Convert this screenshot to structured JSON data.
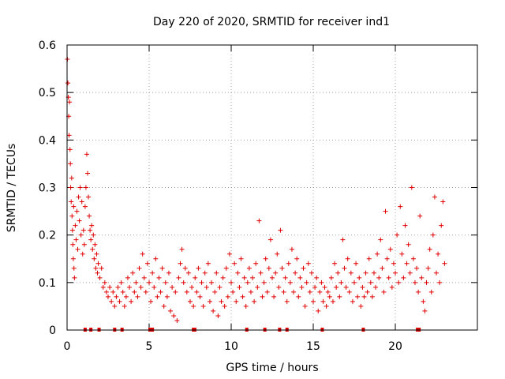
{
  "chart_data": {
    "type": "scatter",
    "title": "Day 220 of 2020, SRMTID for receiver ind1",
    "xlabel": "GPS time / hours",
    "ylabel": "SRMTID / TECUs",
    "xlim": [
      0,
      25
    ],
    "ylim": [
      0,
      0.6
    ],
    "x_ticks": [
      0,
      5,
      10,
      15,
      20
    ],
    "x_tick_labels": [
      "0",
      "5",
      "10",
      "15",
      "20"
    ],
    "y_ticks": [
      0,
      0.1,
      0.2,
      0.3,
      0.4,
      0.5,
      0.6
    ],
    "y_tick_labels": [
      "0",
      "0.1",
      "0.2",
      "0.3",
      "0.4",
      "0.5",
      "0.6"
    ],
    "grid": true,
    "marker": "+",
    "color": "#e00000",
    "series": [
      {
        "name": "SRMTID",
        "points": [
          [
            0.02,
            0.57
          ],
          [
            0.05,
            0.52
          ],
          [
            0.08,
            0.49
          ],
          [
            0.1,
            0.45
          ],
          [
            0.12,
            0.41
          ],
          [
            0.15,
            0.48
          ],
          [
            0.18,
            0.38
          ],
          [
            0.2,
            0.35
          ],
          [
            0.22,
            0.3
          ],
          [
            0.25,
            0.27
          ],
          [
            0.28,
            0.32
          ],
          [
            0.3,
            0.24
          ],
          [
            0.33,
            0.21
          ],
          [
            0.35,
            0.18
          ],
          [
            0.38,
            0.15
          ],
          [
            0.4,
            0.26
          ],
          [
            0.42,
            0.13
          ],
          [
            0.45,
            0.11
          ],
          [
            0.5,
            0.22
          ],
          [
            0.55,
            0.19
          ],
          [
            0.6,
            0.25
          ],
          [
            0.65,
            0.17
          ],
          [
            0.7,
            0.28
          ],
          [
            0.75,
            0.23
          ],
          [
            0.8,
            0.3
          ],
          [
            0.85,
            0.2
          ],
          [
            0.9,
            0.27
          ],
          [
            0.95,
            0.16
          ],
          [
            1.0,
            0.21
          ],
          [
            1.05,
            0.18
          ],
          [
            1.1,
            0.26
          ],
          [
            1.15,
            0.3
          ],
          [
            1.2,
            0.37
          ],
          [
            1.25,
            0.33
          ],
          [
            1.3,
            0.28
          ],
          [
            1.35,
            0.24
          ],
          [
            1.4,
            0.21
          ],
          [
            1.45,
            0.19
          ],
          [
            1.5,
            0.22
          ],
          [
            1.55,
            0.17
          ],
          [
            1.6,
            0.2
          ],
          [
            1.65,
            0.15
          ],
          [
            1.7,
            0.18
          ],
          [
            1.75,
            0.13
          ],
          [
            1.8,
            0.16
          ],
          [
            1.85,
            0.12
          ],
          [
            1.9,
            0.14
          ],
          [
            2.0,
            0.11
          ],
          [
            2.1,
            0.13
          ],
          [
            2.2,
            0.09
          ],
          [
            2.3,
            0.1
          ],
          [
            2.4,
            0.08
          ],
          [
            2.5,
            0.07
          ],
          [
            2.6,
            0.09
          ],
          [
            2.7,
            0.06
          ],
          [
            2.8,
            0.08
          ],
          [
            2.9,
            0.05
          ],
          [
            3.0,
            0.07
          ],
          [
            3.1,
            0.09
          ],
          [
            3.2,
            0.06
          ],
          [
            3.3,
            0.1
          ],
          [
            3.4,
            0.08
          ],
          [
            3.5,
            0.05
          ],
          [
            3.6,
            0.07
          ],
          [
            3.7,
            0.11
          ],
          [
            3.8,
            0.09
          ],
          [
            3.9,
            0.06
          ],
          [
            4.0,
            0.12
          ],
          [
            4.1,
            0.08
          ],
          [
            4.2,
            0.1
          ],
          [
            4.3,
            0.07
          ],
          [
            4.4,
            0.13
          ],
          [
            4.5,
            0.09
          ],
          [
            4.6,
            0.16
          ],
          [
            4.7,
            0.11
          ],
          [
            4.8,
            0.08
          ],
          [
            4.9,
            0.14
          ],
          [
            5.0,
            0.1
          ],
          [
            5.1,
            0.06
          ],
          [
            5.2,
            0.12
          ],
          [
            5.3,
            0.09
          ],
          [
            5.4,
            0.15
          ],
          [
            5.5,
            0.07
          ],
          [
            5.6,
            0.11
          ],
          [
            5.7,
            0.08
          ],
          [
            5.8,
            0.13
          ],
          [
            5.9,
            0.05
          ],
          [
            6.0,
            0.1
          ],
          [
            6.1,
            0.07
          ],
          [
            6.2,
            0.12
          ],
          [
            6.3,
            0.04
          ],
          [
            6.4,
            0.09
          ],
          [
            6.5,
            0.03
          ],
          [
            6.6,
            0.08
          ],
          [
            6.7,
            0.02
          ],
          [
            6.8,
            0.11
          ],
          [
            6.9,
            0.14
          ],
          [
            7.0,
            0.17
          ],
          [
            7.1,
            0.1
          ],
          [
            7.2,
            0.13
          ],
          [
            7.3,
            0.08
          ],
          [
            7.4,
            0.12
          ],
          [
            7.5,
            0.06
          ],
          [
            7.6,
            0.09
          ],
          [
            7.7,
            0.05
          ],
          [
            7.8,
            0.11
          ],
          [
            7.9,
            0.08
          ],
          [
            8.0,
            0.13
          ],
          [
            8.1,
            0.07
          ],
          [
            8.2,
            0.1
          ],
          [
            8.3,
            0.05
          ],
          [
            8.4,
            0.12
          ],
          [
            8.5,
            0.09
          ],
          [
            8.6,
            0.14
          ],
          [
            8.7,
            0.06
          ],
          [
            8.8,
            0.1
          ],
          [
            8.9,
            0.04
          ],
          [
            9.0,
            0.08
          ],
          [
            9.1,
            0.12
          ],
          [
            9.2,
            0.03
          ],
          [
            9.3,
            0.09
          ],
          [
            9.4,
            0.06
          ],
          [
            9.5,
            0.11
          ],
          [
            9.6,
            0.05
          ],
          [
            9.7,
            0.13
          ],
          [
            9.8,
            0.07
          ],
          [
            9.9,
            0.16
          ],
          [
            10.0,
            0.1
          ],
          [
            10.1,
            0.08
          ],
          [
            10.2,
            0.14
          ],
          [
            10.3,
            0.06
          ],
          [
            10.4,
            0.12
          ],
          [
            10.5,
            0.09
          ],
          [
            10.6,
            0.15
          ],
          [
            10.7,
            0.07
          ],
          [
            10.8,
            0.11
          ],
          [
            10.9,
            0.05
          ],
          [
            11.0,
            0.1
          ],
          [
            11.1,
            0.13
          ],
          [
            11.2,
            0.08
          ],
          [
            11.3,
            0.11
          ],
          [
            11.4,
            0.06
          ],
          [
            11.5,
            0.14
          ],
          [
            11.6,
            0.09
          ],
          [
            11.7,
            0.23
          ],
          [
            11.8,
            0.12
          ],
          [
            11.9,
            0.07
          ],
          [
            12.0,
            0.1
          ],
          [
            12.1,
            0.15
          ],
          [
            12.2,
            0.08
          ],
          [
            12.3,
            0.13
          ],
          [
            12.4,
            0.19
          ],
          [
            12.5,
            0.11
          ],
          [
            12.6,
            0.07
          ],
          [
            12.7,
            0.12
          ],
          [
            12.8,
            0.16
          ],
          [
            12.9,
            0.09
          ],
          [
            13.0,
            0.21
          ],
          [
            13.1,
            0.13
          ],
          [
            13.2,
            0.08
          ],
          [
            13.3,
            0.11
          ],
          [
            13.4,
            0.06
          ],
          [
            13.5,
            0.14
          ],
          [
            13.6,
            0.1
          ],
          [
            13.7,
            0.17
          ],
          [
            13.8,
            0.08
          ],
          [
            13.9,
            0.12
          ],
          [
            14.0,
            0.15
          ],
          [
            14.1,
            0.07
          ],
          [
            14.2,
            0.11
          ],
          [
            14.3,
            0.09
          ],
          [
            14.4,
            0.13
          ],
          [
            14.5,
            0.05
          ],
          [
            14.6,
            0.1
          ],
          [
            14.7,
            0.14
          ],
          [
            14.8,
            0.08
          ],
          [
            14.9,
            0.12
          ],
          [
            15.0,
            0.06
          ],
          [
            15.1,
            0.09
          ],
          [
            15.2,
            0.11
          ],
          [
            15.3,
            0.04
          ],
          [
            15.4,
            0.08
          ],
          [
            15.5,
            0.1
          ],
          [
            15.6,
            0.06
          ],
          [
            15.7,
            0.09
          ],
          [
            15.8,
            0.05
          ],
          [
            15.9,
            0.08
          ],
          [
            16.0,
            0.07
          ],
          [
            16.1,
            0.11
          ],
          [
            16.2,
            0.06
          ],
          [
            16.3,
            0.14
          ],
          [
            16.4,
            0.09
          ],
          [
            16.5,
            0.12
          ],
          [
            16.6,
            0.07
          ],
          [
            16.7,
            0.1
          ],
          [
            16.8,
            0.19
          ],
          [
            16.9,
            0.13
          ],
          [
            17.0,
            0.09
          ],
          [
            17.1,
            0.15
          ],
          [
            17.2,
            0.08
          ],
          [
            17.3,
            0.12
          ],
          [
            17.4,
            0.06
          ],
          [
            17.5,
            0.1
          ],
          [
            17.6,
            0.14
          ],
          [
            17.7,
            0.07
          ],
          [
            17.8,
            0.11
          ],
          [
            17.9,
            0.05
          ],
          [
            18.0,
            0.09
          ],
          [
            18.1,
            0.07
          ],
          [
            18.2,
            0.12
          ],
          [
            18.3,
            0.08
          ],
          [
            18.4,
            0.15
          ],
          [
            18.5,
            0.1
          ],
          [
            18.6,
            0.07
          ],
          [
            18.7,
            0.12
          ],
          [
            18.8,
            0.09
          ],
          [
            18.9,
            0.16
          ],
          [
            19.0,
            0.11
          ],
          [
            19.1,
            0.19
          ],
          [
            19.2,
            0.13
          ],
          [
            19.3,
            0.08
          ],
          [
            19.4,
            0.25
          ],
          [
            19.5,
            0.15
          ],
          [
            19.6,
            0.11
          ],
          [
            19.7,
            0.17
          ],
          [
            19.8,
            0.09
          ],
          [
            19.9,
            0.14
          ],
          [
            20.0,
            0.12
          ],
          [
            20.1,
            0.2
          ],
          [
            20.2,
            0.1
          ],
          [
            20.3,
            0.26
          ],
          [
            20.4,
            0.16
          ],
          [
            20.5,
            0.11
          ],
          [
            20.6,
            0.22
          ],
          [
            20.7,
            0.14
          ],
          [
            20.8,
            0.18
          ],
          [
            20.9,
            0.12
          ],
          [
            21.0,
            0.3
          ],
          [
            21.1,
            0.15
          ],
          [
            21.2,
            0.1
          ],
          [
            21.3,
            0.13
          ],
          [
            21.4,
            0.08
          ],
          [
            21.5,
            0.24
          ],
          [
            21.6,
            0.11
          ],
          [
            21.7,
            0.06
          ],
          [
            21.8,
            0.04
          ],
          [
            21.9,
            0.1
          ],
          [
            22.0,
            0.13
          ],
          [
            22.1,
            0.17
          ],
          [
            22.2,
            0.08
          ],
          [
            22.3,
            0.2
          ],
          [
            22.4,
            0.28
          ],
          [
            22.5,
            0.12
          ],
          [
            22.6,
            0.16
          ],
          [
            22.7,
            0.1
          ],
          [
            22.8,
            0.22
          ],
          [
            22.9,
            0.27
          ],
          [
            23.0,
            0.14
          ]
        ]
      }
    ],
    "gap_markers_x": [
      1.1,
      1.45,
      1.95,
      2.9,
      3.35,
      5.05,
      5.2,
      7.7,
      7.78,
      10.95,
      12.05,
      12.95,
      13.4,
      15.55,
      18.05,
      21.35,
      21.45
    ]
  }
}
